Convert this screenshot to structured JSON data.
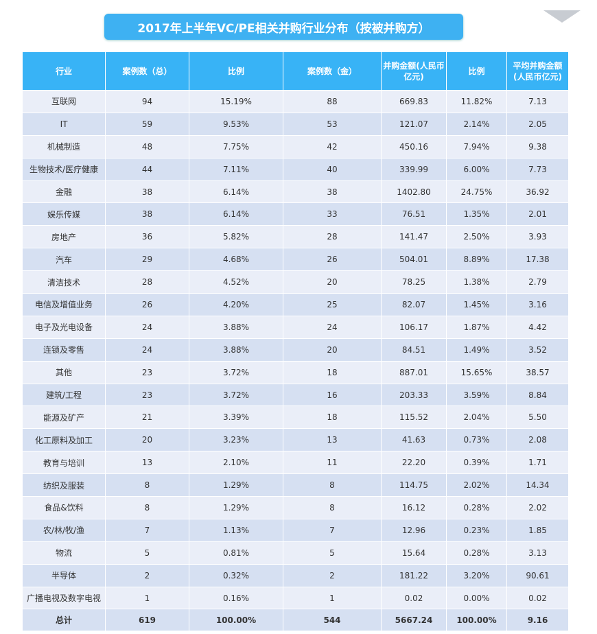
{
  "title": "2017年上半年VC/PE相关并购行业分布（按被并购方）",
  "headers": [
    "行业",
    "案例数（总）",
    "比例",
    "案例数（金）",
    "并购金额(人民币亿元)",
    "比例",
    "平均并购金额(人民币亿元)"
  ],
  "rows": [
    [
      "互联网",
      "94",
      "15.19%",
      "88",
      "669.83",
      "11.82%",
      "7.13"
    ],
    [
      "IT",
      "59",
      "9.53%",
      "53",
      "121.07",
      "2.14%",
      "2.05"
    ],
    [
      "机械制造",
      "48",
      "7.75%",
      "42",
      "450.16",
      "7.94%",
      "9.38"
    ],
    [
      "生物技术/医疗健康",
      "44",
      "7.11%",
      "40",
      "339.99",
      "6.00%",
      "7.73"
    ],
    [
      "金融",
      "38",
      "6.14%",
      "38",
      "1402.80",
      "24.75%",
      "36.92"
    ],
    [
      "娱乐传媒",
      "38",
      "6.14%",
      "33",
      "76.51",
      "1.35%",
      "2.01"
    ],
    [
      "房地产",
      "36",
      "5.82%",
      "28",
      "141.47",
      "2.50%",
      "3.93"
    ],
    [
      "汽车",
      "29",
      "4.68%",
      "26",
      "504.01",
      "8.89%",
      "17.38"
    ],
    [
      "清洁技术",
      "28",
      "4.52%",
      "20",
      "78.25",
      "1.38%",
      "2.79"
    ],
    [
      "电信及增值业务",
      "26",
      "4.20%",
      "25",
      "82.07",
      "1.45%",
      "3.16"
    ],
    [
      "电子及光电设备",
      "24",
      "3.88%",
      "24",
      "106.17",
      "1.87%",
      "4.42"
    ],
    [
      "连锁及零售",
      "24",
      "3.88%",
      "20",
      "84.51",
      "1.49%",
      "3.52"
    ],
    [
      "其他",
      "23",
      "3.72%",
      "18",
      "887.01",
      "15.65%",
      "38.57"
    ],
    [
      "建筑/工程",
      "23",
      "3.72%",
      "16",
      "203.33",
      "3.59%",
      "8.84"
    ],
    [
      "能源及矿产",
      "21",
      "3.39%",
      "18",
      "115.52",
      "2.04%",
      "5.50"
    ],
    [
      "化工原料及加工",
      "20",
      "3.23%",
      "13",
      "41.63",
      "0.73%",
      "2.08"
    ],
    [
      "教育与培训",
      "13",
      "2.10%",
      "11",
      "22.20",
      "0.39%",
      "1.71"
    ],
    [
      "纺织及服装",
      "8",
      "1.29%",
      "8",
      "114.75",
      "2.02%",
      "14.34"
    ],
    [
      "食品&饮料",
      "8",
      "1.29%",
      "8",
      "16.12",
      "0.28%",
      "2.02"
    ],
    [
      "农/林/牧/渔",
      "7",
      "1.13%",
      "7",
      "12.96",
      "0.23%",
      "1.85"
    ],
    [
      "物流",
      "5",
      "0.81%",
      "5",
      "15.64",
      "0.28%",
      "3.13"
    ],
    [
      "半导体",
      "2",
      "0.32%",
      "2",
      "181.22",
      "3.20%",
      "90.61"
    ],
    [
      "广播电视及数字电视",
      "1",
      "0.16%",
      "1",
      "0.02",
      "0.00%",
      "0.02"
    ]
  ],
  "total": [
    "总计",
    "619",
    "100.00%",
    "544",
    "5667.24",
    "100.00%",
    "9.16"
  ]
}
